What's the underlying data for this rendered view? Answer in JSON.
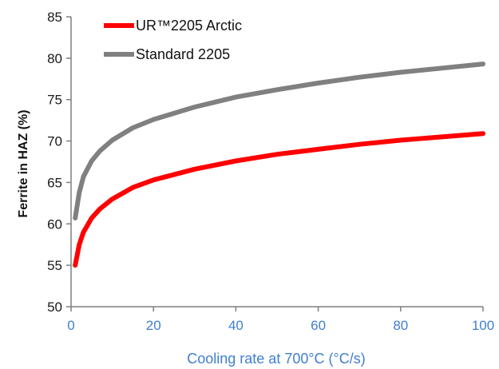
{
  "chart_data": {
    "type": "line",
    "title": "",
    "xlabel": "Cooling rate at 700°C (°C/s)",
    "ylabel": "Ferrite in HAZ (%)",
    "xlim": [
      0,
      100
    ],
    "ylim": [
      50,
      85
    ],
    "xticks": [
      0,
      20,
      40,
      60,
      80,
      100
    ],
    "yticks": [
      50,
      55,
      60,
      65,
      70,
      75,
      80,
      85
    ],
    "grid": false,
    "legend_position": "top-left",
    "series": [
      {
        "name": "UR™2205 Arctic",
        "color": "#ff0000",
        "x": [
          1,
          2,
          3,
          5,
          7,
          10,
          15,
          20,
          30,
          40,
          50,
          60,
          70,
          80,
          90,
          100
        ],
        "y": [
          55.0,
          57.5,
          59.0,
          60.7,
          61.8,
          63.0,
          64.4,
          65.3,
          66.6,
          67.6,
          68.4,
          69.0,
          69.6,
          70.1,
          70.5,
          70.9
        ]
      },
      {
        "name": "Standard 2205",
        "color": "#808080",
        "x": [
          1,
          2,
          3,
          5,
          7,
          10,
          15,
          20,
          30,
          40,
          50,
          60,
          70,
          80,
          90,
          100
        ],
        "y": [
          60.7,
          63.8,
          65.7,
          67.6,
          68.8,
          70.1,
          71.6,
          72.6,
          74.1,
          75.3,
          76.2,
          77.0,
          77.7,
          78.3,
          78.8,
          79.3
        ]
      }
    ]
  }
}
